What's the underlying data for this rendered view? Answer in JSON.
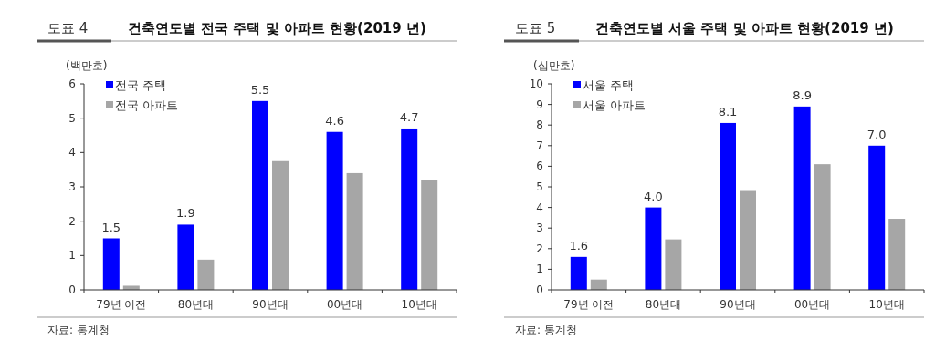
{
  "chart_data": [
    {
      "type": "bar",
      "title": "도표 4",
      "subtitle": "건축연도별 전국 주택 및 아파트 현황(2019 년)",
      "ylabel": "(백만호)",
      "categories": [
        "79년 이전",
        "80년대",
        "90년대",
        "00년대",
        "10년대"
      ],
      "series": [
        {
          "name": "전국 주택",
          "color": "#0000ff",
          "values": [
            1.5,
            1.9,
            5.5,
            4.6,
            4.7
          ],
          "value_labels": [
            "1.5",
            "1.9",
            "5.5",
            "4.6",
            "4.7"
          ]
        },
        {
          "name": "전국 아파트",
          "color": "#a6a6a6",
          "values": [
            0.12,
            0.88,
            3.75,
            3.4,
            3.2
          ]
        }
      ],
      "ylim": [
        0,
        6
      ],
      "yticks": [
        0,
        1,
        2,
        3,
        4,
        5,
        6
      ],
      "legend": "top left",
      "grid": false,
      "annotations": [
        "자료: 통계청"
      ]
    },
    {
      "type": "bar",
      "title": "도표 5",
      "subtitle": "건축연도별 서울 주택 및 아파트 현황(2019 년)",
      "ylabel": "(십만호)",
      "categories": [
        "79년 이전",
        "80년대",
        "90년대",
        "00년대",
        "10년대"
      ],
      "series": [
        {
          "name": "서울 주택",
          "color": "#0000ff",
          "values": [
            1.6,
            4.0,
            8.1,
            8.9,
            7.0
          ],
          "value_labels": [
            "1.6",
            "4.0",
            "8.1",
            "8.9",
            "7.0"
          ]
        },
        {
          "name": "서울 아파트",
          "color": "#a6a6a6",
          "values": [
            0.5,
            2.45,
            4.8,
            6.1,
            3.45
          ]
        }
      ],
      "ylim": [
        0,
        10
      ],
      "yticks": [
        0,
        1,
        2,
        3,
        4,
        5,
        6,
        7,
        8,
        9,
        10
      ],
      "legend": "top left",
      "grid": false,
      "annotations": [
        "자료: 통계청"
      ]
    }
  ]
}
